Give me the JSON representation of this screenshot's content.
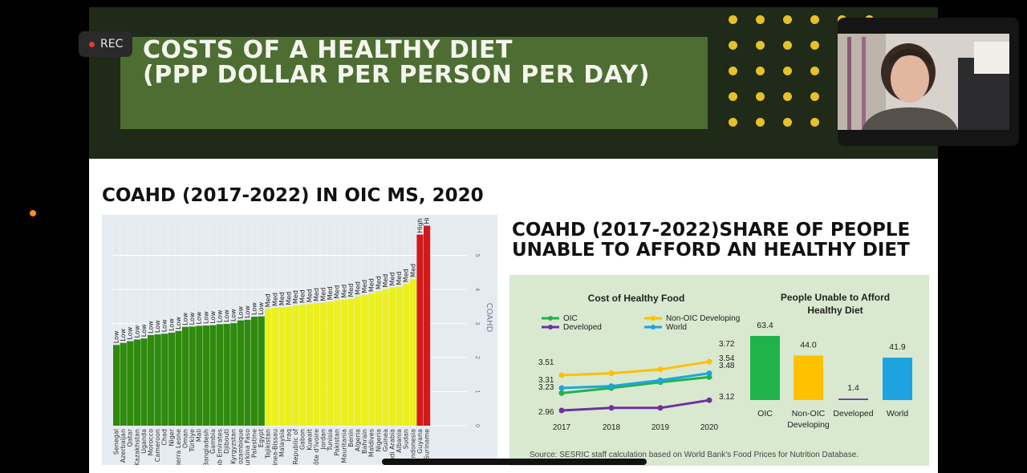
{
  "recording": {
    "label": "REC"
  },
  "banner": {
    "title_line1": "COSTS OF A HEALTHY DIET",
    "title_line2": "(PPP DOLLAR PER PERSON PER DAY)"
  },
  "left_section": {
    "title": "COAHD (2017-2022) IN OIC MS, 2020"
  },
  "right_section": {
    "title_line1": "COAHD (2017-2022)SHARE OF PEOPLE",
    "title_line2": "UNABLE TO AFFORD AN HEALTHY DIET"
  },
  "colors": {
    "low": "#2f8a0e",
    "med": "#ebf01e",
    "high": "#d11a1a",
    "oic": "#1fb34a",
    "non_oic": "#ffc000",
    "developed": "#7030a0",
    "world": "#1fa3e0"
  },
  "chart_data": [
    {
      "type": "bar",
      "ylabel": "COAHD",
      "ylim": [
        0,
        6
      ],
      "yticks": [
        0,
        1,
        2,
        3,
        4,
        5
      ],
      "categories": [
        "Senegal",
        "Azerbaijan",
        "Qatar",
        "Kazakhstan",
        "Uganda",
        "Morocco",
        "Cameroon",
        "Chad",
        "Niger",
        "Sierra Leone",
        "Oman",
        "Türkiye",
        "Mali",
        "Bangladesh",
        "Gambia",
        "Arab Emirates",
        "Djibouti",
        "Kyrgyzstan",
        "Mozambique",
        "Burkina Faso",
        "Palestine",
        "Egypt",
        "Tajikistan",
        "Guinea-Bissau",
        "Malaysia",
        "Iraq",
        "Republic of",
        "Gabon",
        "Kuwait",
        "Côte d'Ivoire",
        "Jordan",
        "Tunisia",
        "Pakistan",
        "Mauritania",
        "Benin",
        "Algeria",
        "Bahrain",
        "Maldives",
        "Nigeria",
        "Guinea",
        "Saudi Arabia",
        "Albania",
        "Sudan",
        "Indonesia",
        "Guyana",
        "Suriname"
      ],
      "values": [
        2.37,
        2.43,
        2.48,
        2.53,
        2.56,
        2.66,
        2.68,
        2.7,
        2.73,
        2.78,
        2.9,
        2.91,
        2.93,
        2.94,
        2.95,
        2.98,
        2.99,
        3.01,
        3.09,
        3.11,
        3.2,
        3.21,
        3.43,
        3.46,
        3.48,
        3.49,
        3.53,
        3.55,
        3.57,
        3.6,
        3.61,
        3.64,
        3.68,
        3.7,
        3.73,
        3.79,
        3.84,
        3.88,
        3.95,
        4.01,
        4.06,
        4.08,
        4.16,
        4.31,
        5.61,
        5.87
      ],
      "labels": [
        "Low",
        "Low",
        "Low",
        "Low",
        "Low",
        "Low",
        "Low",
        "Low",
        "Low",
        "Low",
        "Low",
        "Low",
        "Low",
        "Low",
        "Low",
        "Low",
        "Low",
        "Low",
        "Low",
        "Low",
        "Low",
        "Low",
        "Med",
        "Med",
        "Med",
        "Med",
        "Med",
        "Med",
        "Med",
        "Med",
        "Med",
        "Med",
        "Med",
        "Med",
        "Med",
        "Med",
        "Med",
        "Med",
        "Med",
        "Med",
        "Med",
        "Med",
        "Med",
        "Med",
        "High",
        "Hi"
      ]
    },
    {
      "type": "line",
      "title": "Cost of Healthy Food",
      "x": [
        "2017",
        "2018",
        "2019",
        "2020"
      ],
      "series": [
        {
          "name": "OIC",
          "values": [
            3.23,
            3.31,
            3.4,
            3.48
          ]
        },
        {
          "name": "Developed",
          "values": [
            2.96,
            3.0,
            3.0,
            3.12
          ]
        },
        {
          "name": "Non-OIC Developing",
          "values": [
            3.51,
            3.54,
            3.6,
            3.72
          ]
        },
        {
          "name": "World",
          "values": [
            3.31,
            3.34,
            3.43,
            3.54
          ]
        }
      ],
      "point_labels": {
        "start": [
          "3.51",
          "3.31",
          "3.23",
          "2.96"
        ],
        "end": [
          "3.72",
          "3.54",
          "3.48",
          "3.12"
        ]
      },
      "ylim": [
        2.8,
        3.8
      ]
    },
    {
      "type": "bar",
      "title_line1": "People Unable to Afford",
      "title_line2": "Healthy Diet",
      "categories": [
        "OIC",
        "Non-OIC|Developing",
        "Developed",
        "World"
      ],
      "values": [
        63.4,
        44.0,
        1.4,
        41.9
      ],
      "value_labels": [
        "63.4",
        "44.0",
        "1.4",
        "41.9"
      ],
      "ylim": [
        0,
        70
      ]
    }
  ],
  "source_note": "Source: SESRIC staff calculation based on World Bank's Food Prices for Nutrition Database."
}
